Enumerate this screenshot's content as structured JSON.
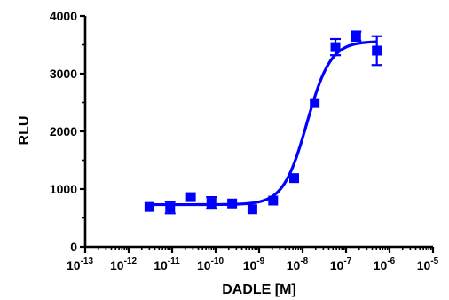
{
  "chart_data": {
    "type": "scatter",
    "xlabel": "DADLE [M]",
    "ylabel": "RLU",
    "x_scale": "log10",
    "xlim": [
      1e-13,
      1e-05
    ],
    "ylim": [
      0,
      4000
    ],
    "x_ticks": [
      {
        "base": "10",
        "exp": "-13",
        "value": 1e-13
      },
      {
        "base": "10",
        "exp": "-12",
        "value": 1e-12
      },
      {
        "base": "10",
        "exp": "-11",
        "value": 1e-11
      },
      {
        "base": "10",
        "exp": "-10",
        "value": 1e-10
      },
      {
        "base": "10",
        "exp": "-9",
        "value": 1e-09
      },
      {
        "base": "10",
        "exp": "-8",
        "value": 1e-08
      },
      {
        "base": "10",
        "exp": "-7",
        "value": 1e-07
      },
      {
        "base": "10",
        "exp": "-6",
        "value": 1e-06
      },
      {
        "base": "10",
        "exp": "-5",
        "value": 1e-05
      }
    ],
    "y_ticks": [
      {
        "label": "0",
        "value": 0
      },
      {
        "label": "1000",
        "value": 1000
      },
      {
        "label": "2000",
        "value": 2000
      },
      {
        "label": "3000",
        "value": 3000
      },
      {
        "label": "4000",
        "value": 4000
      }
    ],
    "points": [
      {
        "x": 3e-12,
        "y": 690,
        "err": 0
      },
      {
        "x": 9e-12,
        "y": 680,
        "err": 100
      },
      {
        "x": 2.7e-11,
        "y": 860,
        "err": 0
      },
      {
        "x": 8e-11,
        "y": 760,
        "err": 100
      },
      {
        "x": 2.4e-10,
        "y": 750,
        "err": 0
      },
      {
        "x": 7e-10,
        "y": 650,
        "err": 0
      },
      {
        "x": 2.1e-09,
        "y": 800,
        "err": 0
      },
      {
        "x": 6.4e-09,
        "y": 1190,
        "err": 0
      },
      {
        "x": 1.9e-08,
        "y": 2490,
        "err": 0
      },
      {
        "x": 5.7e-08,
        "y": 3460,
        "err": 140
      },
      {
        "x": 1.7e-07,
        "y": 3650,
        "err": 80
      },
      {
        "x": 5.1e-07,
        "y": 3400,
        "err": 250
      }
    ],
    "fit": {
      "model": "sigmoidal dose-response",
      "bottom": 730,
      "top": 3560,
      "log_ec50": -7.9,
      "hill_slope": 1.6
    },
    "colors": {
      "series": "#0000ff",
      "axes": "#000000"
    }
  }
}
